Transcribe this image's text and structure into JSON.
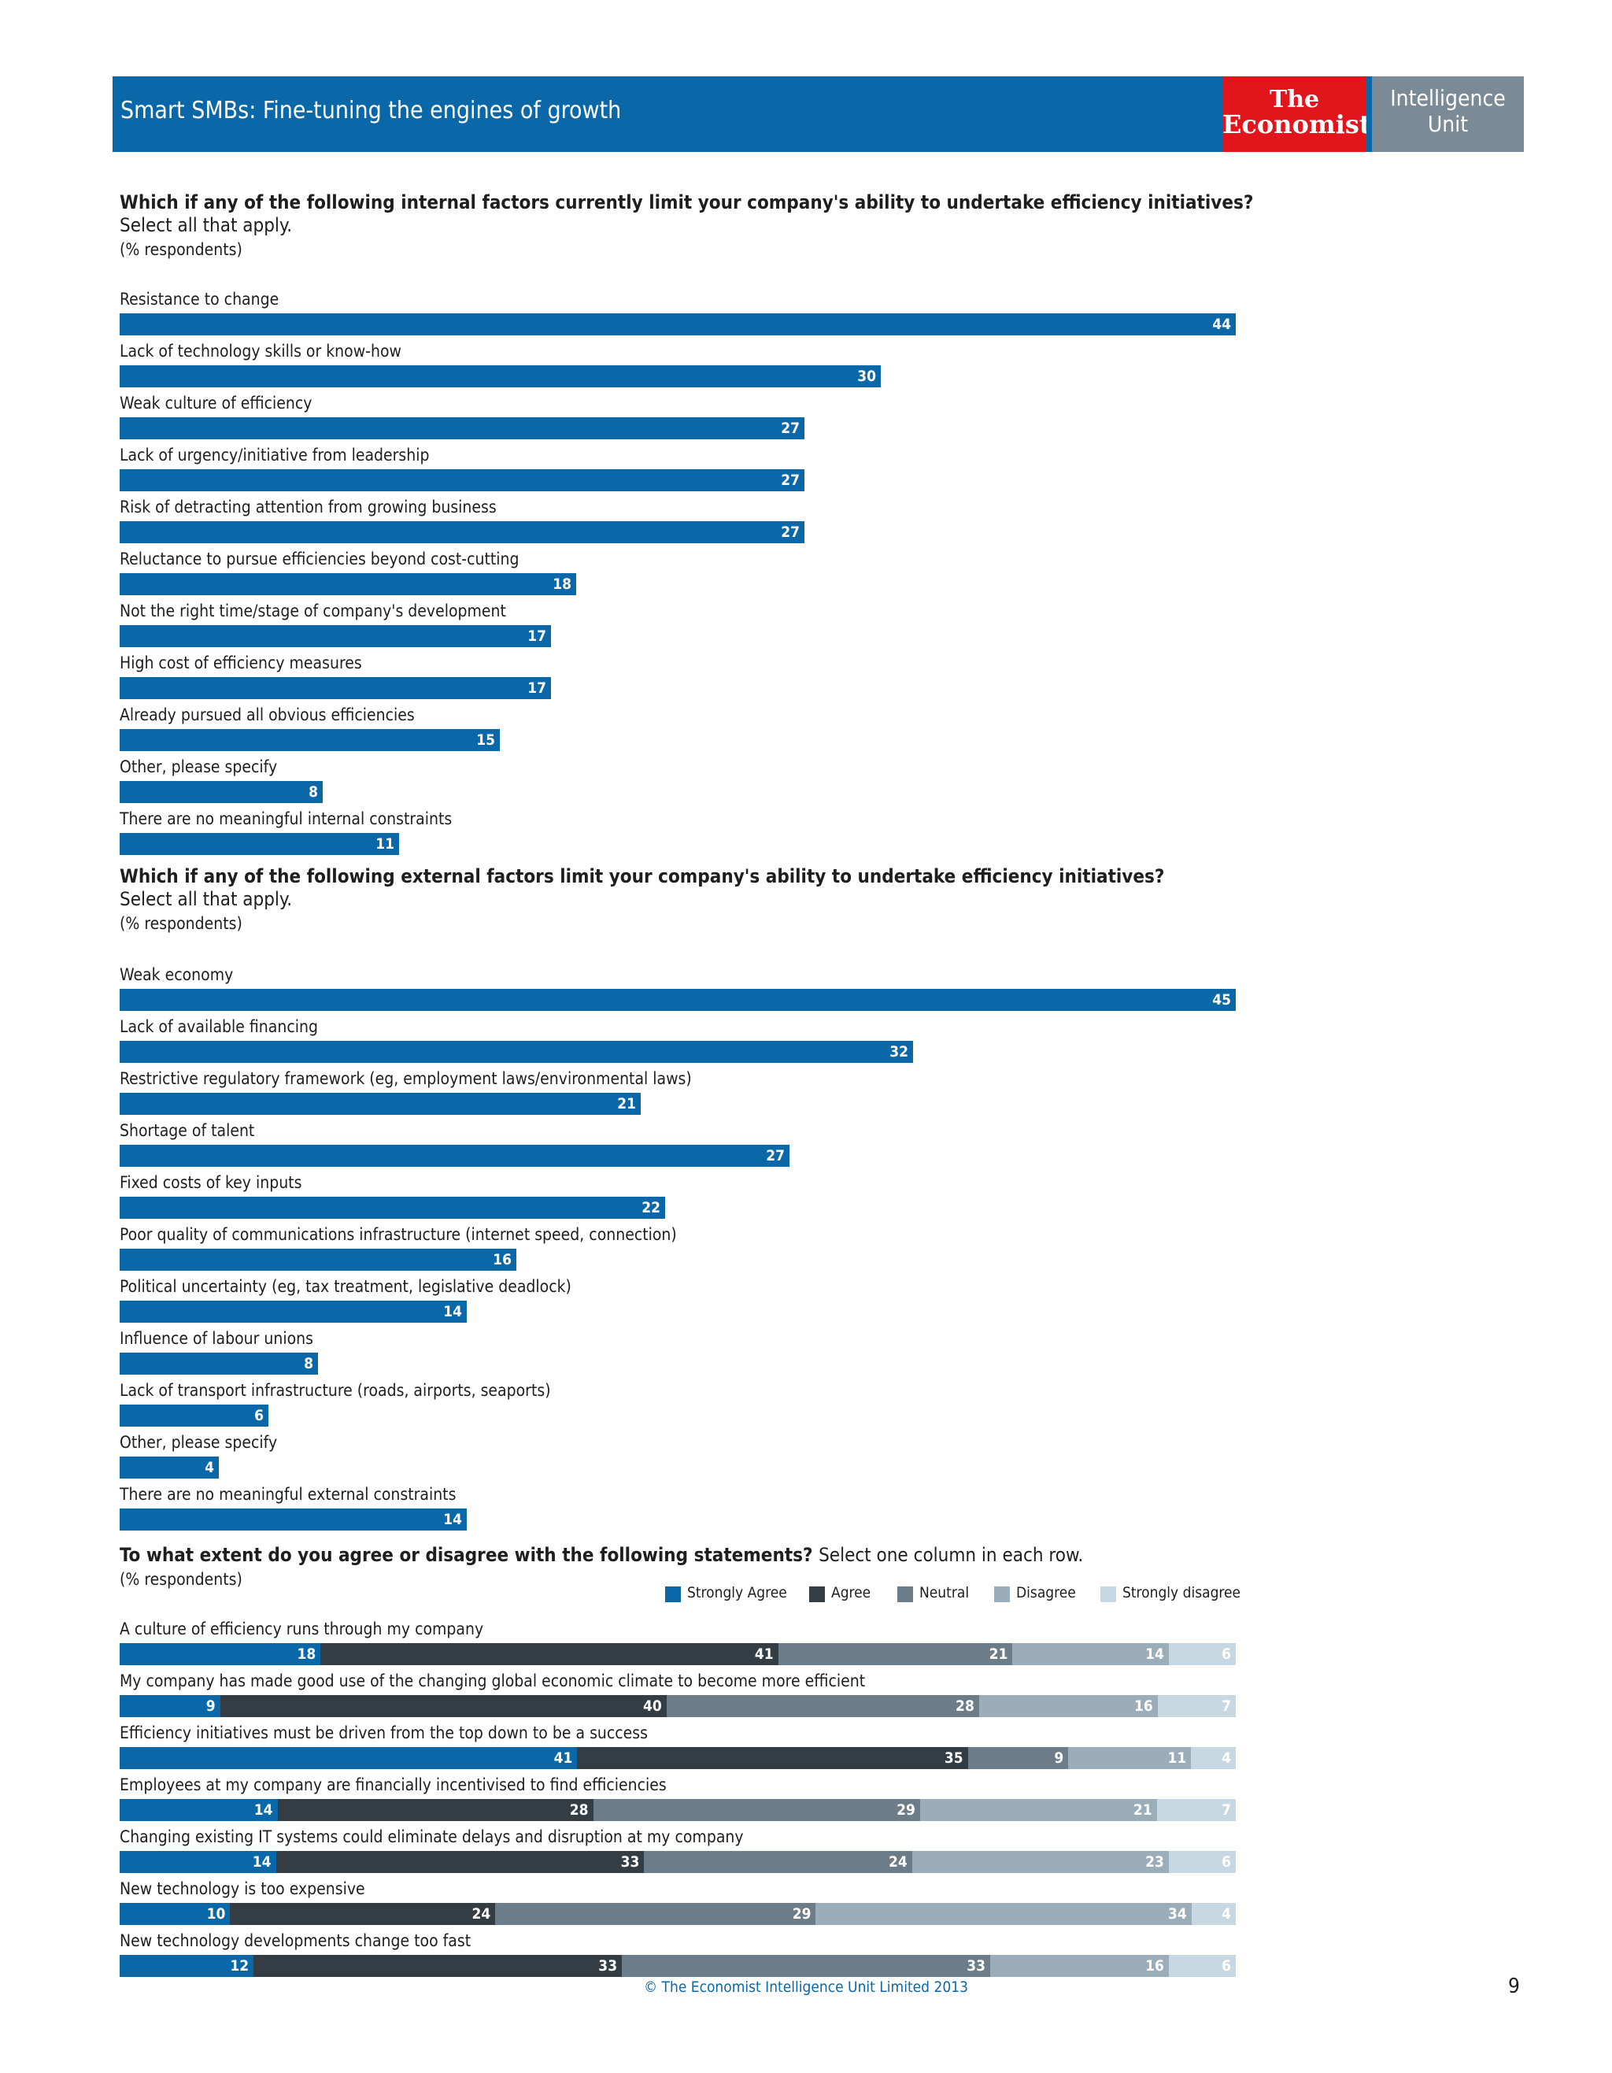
{
  "header": {
    "title": "Smart SMBs: Fine-tuning the engines of growth",
    "logo_economist_line1": "The",
    "logo_economist_line2": "Economist",
    "logo_unit_line1": "Intelligence",
    "logo_unit_line2": "Unit"
  },
  "colors": {
    "primary_blue": "#0a67a8",
    "economist_red": "#e2141c",
    "unit_grey": "#7a8a96"
  },
  "chart_data": [
    {
      "type": "bar",
      "orientation": "horizontal",
      "title": "Which if any of the following internal factors currently limit your company's ability to undertake efficiency initiatives?",
      "subtitle": "Select all that apply.",
      "note": "(% respondents)",
      "categories": [
        "Resistance to change",
        "Lack of technology skills or know-how",
        "Weak culture of efficiency",
        "Lack of urgency/initiative from leadership",
        "Risk of detracting attention from growing business",
        "Reluctance to pursue efficiencies beyond cost-cutting",
        "Not the right time/stage of company's development",
        "High cost of efficiency measures",
        "Already pursued all obvious efficiencies",
        "Other, please specify",
        "There are no meaningful internal constraints"
      ],
      "values": [
        44,
        30,
        27,
        27,
        27,
        18,
        17,
        17,
        15,
        8,
        11
      ],
      "xlim": [
        0,
        44
      ],
      "grid": false,
      "color": "#0a67a8"
    },
    {
      "type": "bar",
      "orientation": "horizontal",
      "title": "Which if any of the following external factors limit your company's ability to undertake efficiency initiatives?",
      "subtitle": "Select all that apply.",
      "note": "(% respondents)",
      "categories": [
        "Weak economy",
        "Lack of available financing",
        "Restrictive regulatory framework (eg, employment laws/environmental laws)",
        "Shortage of talent",
        "Fixed costs of key inputs",
        "Poor quality of communications infrastructure (internet speed, connection)",
        "Political uncertainty (eg, tax treatment, legislative deadlock)",
        "Influence of labour unions",
        "Lack of transport infrastructure (roads, airports, seaports)",
        "Other, please specify",
        "There are no meaningful external constraints"
      ],
      "values": [
        45,
        32,
        21,
        27,
        22,
        16,
        14,
        8,
        6,
        4,
        14
      ],
      "xlim": [
        0,
        45
      ],
      "grid": false,
      "color": "#0a67a8"
    },
    {
      "type": "bar",
      "orientation": "horizontal",
      "stacked": true,
      "title": "To what extent do you agree or disagree with the following statements?",
      "title_suffix": "Select one column in each row.",
      "note": "(% respondents)",
      "legend_position": "top-right",
      "categories": [
        "A culture of efficiency runs through my company",
        "My company has made good use of the changing global economic climate to become more efficient",
        "Efficiency initiatives must be driven from the top down to be a success",
        "Employees at my company are financially incentivised to find efficiencies",
        "Changing existing IT systems could eliminate delays and disruption at my company",
        "New technology is too expensive",
        "New technology developments change too fast"
      ],
      "series": [
        {
          "name": "Strongly Agree",
          "color": "#0a67a8",
          "values": [
            18,
            9,
            41,
            14,
            14,
            10,
            12
          ]
        },
        {
          "name": "Agree",
          "color": "#343d44",
          "values": [
            41,
            40,
            35,
            28,
            33,
            24,
            33
          ]
        },
        {
          "name": "Neutral",
          "color": "#6c7d89",
          "values": [
            21,
            28,
            9,
            29,
            24,
            29,
            33
          ]
        },
        {
          "name": "Disagree",
          "color": "#9badb9",
          "values": [
            14,
            16,
            11,
            21,
            23,
            34,
            16
          ]
        },
        {
          "name": "Strongly disagree",
          "color": "#c8d8e3",
          "values": [
            6,
            7,
            4,
            7,
            6,
            4,
            6
          ]
        }
      ],
      "xlim": [
        0,
        100
      ],
      "grid": false
    }
  ],
  "footer": {
    "copyright": "© The Economist Intelligence Unit Limited 2013",
    "page_number": "9"
  }
}
